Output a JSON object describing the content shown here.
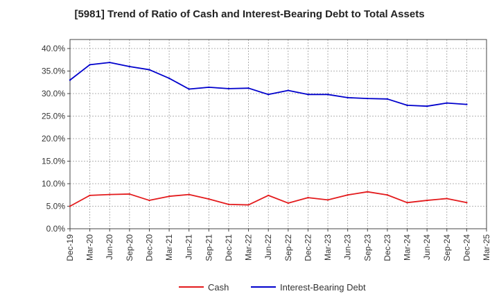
{
  "chart_data": {
    "type": "line",
    "title": "[5981]  Trend of Ratio of Cash and Interest-Bearing Debt to Total Assets",
    "xlabel": "",
    "ylabel": "",
    "x_ticks": [
      "Dec-19",
      "Mar-20",
      "Jun-20",
      "Sep-20",
      "Dec-20",
      "Mar-21",
      "Jun-21",
      "Sep-21",
      "Dec-21",
      "Mar-22",
      "Jun-22",
      "Sep-22",
      "Dec-22",
      "Mar-23",
      "Jun-23",
      "Sep-23",
      "Dec-23",
      "Mar-24",
      "Jun-24",
      "Sep-24",
      "Dec-24",
      "Mar-25"
    ],
    "y_ticks": [
      "0.0%",
      "5.0%",
      "10.0%",
      "15.0%",
      "20.0%",
      "25.0%",
      "30.0%",
      "35.0%",
      "40.0%"
    ],
    "ylim": [
      0,
      42
    ],
    "grid": true,
    "legend_position": "bottom",
    "categories": [
      "Dec-19",
      "Mar-20",
      "Jun-20",
      "Sep-20",
      "Dec-20",
      "Mar-21",
      "Jun-21",
      "Sep-21",
      "Dec-21",
      "Mar-22",
      "Jun-22",
      "Sep-22",
      "Dec-22",
      "Mar-23",
      "Jun-23",
      "Sep-23",
      "Dec-23",
      "Mar-24",
      "Jun-24",
      "Sep-24",
      "Dec-24"
    ],
    "series": [
      {
        "name": "Cash",
        "color": "#e31a1c",
        "values": [
          5.0,
          7.4,
          7.6,
          7.7,
          6.3,
          7.2,
          7.6,
          6.6,
          5.4,
          5.3,
          7.4,
          5.7,
          6.9,
          6.4,
          7.5,
          8.2,
          7.5,
          5.8,
          6.3,
          6.7,
          5.8
        ]
      },
      {
        "name": "Interest-Bearing Debt",
        "color": "#0000cc",
        "values": [
          33.0,
          36.4,
          36.9,
          36.0,
          35.3,
          33.4,
          31.0,
          31.4,
          31.1,
          31.2,
          29.8,
          30.7,
          29.8,
          29.8,
          29.1,
          28.9,
          28.8,
          27.4,
          27.2,
          27.9,
          27.6
        ]
      }
    ]
  }
}
